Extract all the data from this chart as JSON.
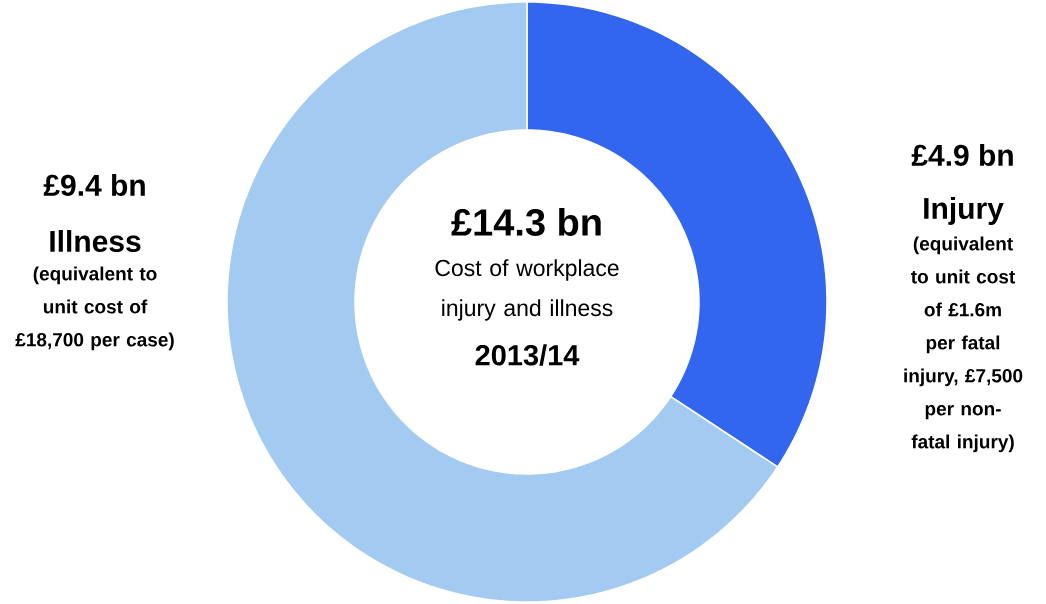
{
  "chart_data": {
    "type": "donut",
    "title": "£14.3 bn",
    "subtitle": "Cost of workplace injury and illness",
    "categories": [
      "Injury",
      "Illness"
    ],
    "values": [
      4.9,
      9.4
    ],
    "colors": [
      "#3366ee",
      "#a3cbf2"
    ],
    "value_labels": [
      "£4.9 bn",
      "£9.4 bn"
    ],
    "annotations": [
      "2013/14",
      "(equivalent to unit cost of £1.6m per fatal injury, £7,500 per non-fatal injury)",
      "(equivalent to unit cost of £18,700 per case)"
    ]
  }
}
